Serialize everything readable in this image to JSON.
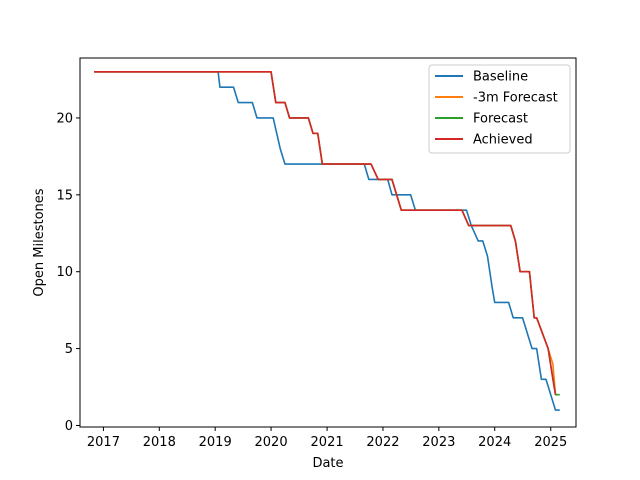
{
  "chart_data": {
    "type": "line",
    "title": "",
    "xlabel": "Date",
    "ylabel": "Open Milestones",
    "xlim": [
      "2016-08-01",
      "2025-06-15"
    ],
    "ylim": [
      -0.1,
      23.9
    ],
    "x_ticks": [
      "2017",
      "2018",
      "2019",
      "2020",
      "2021",
      "2022",
      "2023",
      "2024",
      "2025"
    ],
    "y_ticks": [
      0,
      5,
      10,
      15,
      20
    ],
    "grid": false,
    "legend_position": "top-right",
    "series": [
      {
        "name": "Baseline",
        "color": "#1f77b4",
        "points": [
          [
            "2016-11-01",
            23
          ],
          [
            "2019-01-20",
            23
          ],
          [
            "2019-02-01",
            22
          ],
          [
            "2019-05-01",
            22
          ],
          [
            "2019-06-01",
            21
          ],
          [
            "2019-09-01",
            21
          ],
          [
            "2019-10-01",
            20
          ],
          [
            "2020-01-15",
            20
          ],
          [
            "2020-03-01",
            18
          ],
          [
            "2020-04-01",
            17
          ],
          [
            "2021-09-01",
            17
          ],
          [
            "2021-10-01",
            16
          ],
          [
            "2022-02-01",
            16
          ],
          [
            "2022-03-01",
            15
          ],
          [
            "2022-07-01",
            15
          ],
          [
            "2022-08-01",
            14
          ],
          [
            "2023-07-01",
            14
          ],
          [
            "2023-08-01",
            13
          ],
          [
            "2023-09-15",
            12
          ],
          [
            "2023-10-15",
            12
          ],
          [
            "2023-11-15",
            11
          ],
          [
            "2023-12-15",
            9
          ],
          [
            "2024-01-01",
            8
          ],
          [
            "2024-04-01",
            8
          ],
          [
            "2024-05-01",
            7
          ],
          [
            "2024-07-01",
            7
          ],
          [
            "2024-09-01",
            5
          ],
          [
            "2024-10-01",
            5
          ],
          [
            "2024-11-01",
            3
          ],
          [
            "2024-12-01",
            3
          ],
          [
            "2025-02-01",
            1
          ],
          [
            "2025-03-01",
            1
          ]
        ]
      },
      {
        "name": "-3m Forecast",
        "color": "#ff7f0e",
        "points": [
          [
            "2016-11-01",
            23
          ],
          [
            "2020-01-01",
            23
          ],
          [
            "2020-02-01",
            21
          ],
          [
            "2020-04-01",
            21
          ],
          [
            "2020-05-01",
            20
          ],
          [
            "2020-09-01",
            20
          ],
          [
            "2020-10-01",
            19
          ],
          [
            "2020-11-01",
            19
          ],
          [
            "2020-12-01",
            17
          ],
          [
            "2021-10-15",
            17
          ],
          [
            "2021-12-01",
            16
          ],
          [
            "2022-03-01",
            16
          ],
          [
            "2022-05-01",
            14
          ],
          [
            "2023-06-01",
            14
          ],
          [
            "2023-07-15",
            13
          ],
          [
            "2024-04-15",
            13
          ],
          [
            "2024-05-15",
            12
          ],
          [
            "2024-06-15",
            10
          ],
          [
            "2024-08-15",
            10
          ],
          [
            "2024-09-15",
            7
          ],
          [
            "2024-10-01",
            7
          ],
          [
            "2024-12-15",
            5
          ],
          [
            "2025-01-15",
            4
          ],
          [
            "2025-02-01",
            2
          ]
        ]
      },
      {
        "name": "Forecast",
        "color": "#2ca02c",
        "points": [
          [
            "2016-11-01",
            23
          ],
          [
            "2020-01-01",
            23
          ],
          [
            "2020-02-01",
            21
          ],
          [
            "2020-04-01",
            21
          ],
          [
            "2020-05-01",
            20
          ],
          [
            "2020-09-01",
            20
          ],
          [
            "2020-10-01",
            19
          ],
          [
            "2020-11-01",
            19
          ],
          [
            "2020-12-01",
            17
          ],
          [
            "2021-10-15",
            17
          ],
          [
            "2021-12-01",
            16
          ],
          [
            "2022-03-01",
            16
          ],
          [
            "2022-05-01",
            14
          ],
          [
            "2023-06-01",
            14
          ],
          [
            "2023-07-15",
            13
          ],
          [
            "2024-04-15",
            13
          ],
          [
            "2024-05-15",
            12
          ],
          [
            "2024-06-15",
            10
          ],
          [
            "2024-08-15",
            10
          ],
          [
            "2024-09-15",
            7
          ],
          [
            "2024-10-01",
            7
          ],
          [
            "2024-12-15",
            5
          ],
          [
            "2025-02-01",
            2
          ],
          [
            "2025-03-01",
            2
          ]
        ]
      },
      {
        "name": "Achieved",
        "color": "#d62728",
        "points": [
          [
            "2016-11-01",
            23
          ],
          [
            "2020-01-01",
            23
          ],
          [
            "2020-02-01",
            21
          ],
          [
            "2020-04-01",
            21
          ],
          [
            "2020-05-01",
            20
          ],
          [
            "2020-09-01",
            20
          ],
          [
            "2020-10-01",
            19
          ],
          [
            "2020-11-01",
            19
          ],
          [
            "2020-12-01",
            17
          ],
          [
            "2021-10-15",
            17
          ],
          [
            "2021-12-01",
            16
          ],
          [
            "2022-03-01",
            16
          ],
          [
            "2022-05-01",
            14
          ],
          [
            "2023-06-01",
            14
          ],
          [
            "2023-07-15",
            13
          ],
          [
            "2024-04-15",
            13
          ],
          [
            "2024-05-15",
            12
          ],
          [
            "2024-06-15",
            10
          ],
          [
            "2024-08-15",
            10
          ],
          [
            "2024-09-15",
            7
          ],
          [
            "2024-10-01",
            7
          ],
          [
            "2024-12-15",
            5
          ],
          [
            "2025-01-15",
            3
          ],
          [
            "2025-02-01",
            2
          ]
        ]
      }
    ]
  }
}
